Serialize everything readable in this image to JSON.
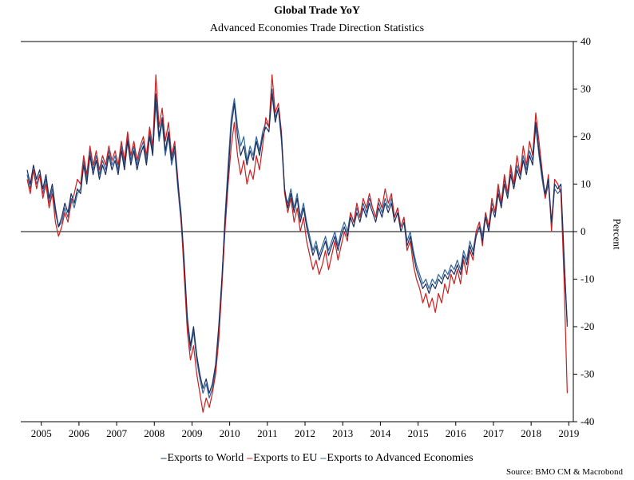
{
  "page": {
    "title": "Global Trade YoY",
    "subtitle": "Advanced Economies Trade Direction Statistics",
    "source": "Source: BMO CM & Macrobond",
    "ylabel": "Percent"
  },
  "chart_data": {
    "type": "line",
    "title": "Global Trade YoY",
    "subtitle": "Advanced Economies Trade Direction Statistics",
    "xlabel": "",
    "ylabel": "Percent",
    "ylim": [
      -40,
      40
    ],
    "yticks": [
      40,
      30,
      20,
      10,
      0,
      -10,
      -20,
      -30,
      -40
    ],
    "xlim": [
      2004.54,
      2019.12
    ],
    "xticks": [
      2005,
      2006,
      2007,
      2008,
      2009,
      2010,
      2011,
      2012,
      2013,
      2014,
      2015,
      2016,
      2017,
      2018,
      2019
    ],
    "x_start": 2004.625,
    "x_step": 0.0833333,
    "grid": false,
    "zero_line": true,
    "legend_position": "bottom",
    "source": "Source: BMO CM & Macrobond",
    "series": [
      {
        "name": "Exports to World",
        "color": "#1a2f5e",
        "values": [
          13,
          10,
          14,
          11,
          13,
          9,
          12,
          7,
          10,
          5,
          1,
          3,
          6,
          4,
          8,
          6,
          9,
          8,
          14,
          10,
          16,
          12,
          15,
          11,
          14,
          12,
          16,
          13,
          15,
          12,
          17,
          13,
          19,
          14,
          17,
          13,
          16,
          18,
          14,
          20,
          16,
          29,
          20,
          24,
          17,
          21,
          15,
          18,
          10,
          4,
          -6,
          -18,
          -24,
          -20,
          -26,
          -30,
          -33,
          -31,
          -34,
          -32,
          -28,
          -20,
          -10,
          2,
          12,
          22,
          27,
          20,
          16,
          18,
          14,
          17,
          15,
          19,
          16,
          20,
          22,
          21,
          29,
          23,
          26,
          20,
          9,
          5,
          8,
          4,
          7,
          2,
          5,
          1,
          -2,
          -5,
          -3,
          -6,
          -4,
          -2,
          -5,
          -3,
          -1,
          -4,
          -1,
          1,
          -1,
          3,
          1,
          4,
          2,
          5,
          3,
          6,
          4,
          2,
          5,
          3,
          6,
          4,
          6,
          2,
          4,
          0,
          2,
          -3,
          -1,
          -5,
          -8,
          -10,
          -12,
          -11,
          -13,
          -11,
          -12,
          -10,
          -11,
          -9,
          -10,
          -8,
          -9,
          -7,
          -9,
          -5,
          -7,
          -3,
          -5,
          -1,
          1,
          -2,
          3,
          0,
          5,
          3,
          8,
          5,
          10,
          7,
          12,
          9,
          13,
          11,
          15,
          12,
          16,
          14,
          23,
          17,
          12,
          8,
          11,
          2,
          10,
          9,
          10,
          -5,
          -20
        ]
      },
      {
        "name": "Exports to EU",
        "color": "#cc1f1f",
        "values": [
          11,
          8,
          13,
          9,
          12,
          7,
          10,
          5,
          8,
          2,
          -1,
          1,
          4,
          2,
          6,
          8,
          11,
          10,
          16,
          12,
          18,
          14,
          17,
          13,
          16,
          14,
          18,
          15,
          17,
          14,
          19,
          15,
          21,
          16,
          19,
          15,
          18,
          20,
          16,
          22,
          18,
          33,
          22,
          26,
          19,
          23,
          16,
          19,
          11,
          3,
          -9,
          -21,
          -27,
          -24,
          -30,
          -34,
          -38,
          -35,
          -37,
          -34,
          -30,
          -23,
          -12,
          0,
          10,
          18,
          23,
          16,
          12,
          15,
          10,
          13,
          11,
          16,
          13,
          18,
          24,
          22,
          33,
          25,
          27,
          21,
          8,
          4,
          7,
          2,
          5,
          0,
          3,
          -2,
          -5,
          -8,
          -6,
          -9,
          -7,
          -4,
          -8,
          -5,
          -2,
          -6,
          -3,
          0,
          -2,
          4,
          2,
          6,
          3,
          7,
          5,
          8,
          5,
          3,
          7,
          5,
          9,
          6,
          8,
          3,
          5,
          1,
          3,
          -4,
          -2,
          -7,
          -10,
          -12,
          -15,
          -13,
          -16,
          -14,
          -17,
          -13,
          -15,
          -11,
          -13,
          -9,
          -11,
          -8,
          -11,
          -6,
          -9,
          -4,
          -6,
          0,
          2,
          -3,
          4,
          1,
          7,
          4,
          10,
          6,
          12,
          8,
          14,
          10,
          16,
          12,
          18,
          14,
          19,
          16,
          25,
          19,
          13,
          7,
          12,
          0,
          11,
          10,
          8,
          -10,
          -34
        ]
      },
      {
        "name": "Exports to Advanced Economies",
        "color": "#31659c",
        "values": [
          12,
          9,
          13,
          10,
          12,
          8,
          11,
          6,
          9,
          4,
          1,
          2,
          5,
          3,
          7,
          5,
          8,
          9,
          15,
          11,
          17,
          13,
          16,
          12,
          15,
          13,
          17,
          14,
          16,
          13,
          18,
          14,
          20,
          15,
          18,
          14,
          17,
          19,
          15,
          21,
          17,
          27,
          19,
          23,
          16,
          20,
          14,
          17,
          9,
          2,
          -7,
          -19,
          -25,
          -21,
          -27,
          -31,
          -34,
          -32,
          -35,
          -33,
          -29,
          -21,
          -11,
          3,
          14,
          24,
          28,
          22,
          18,
          20,
          15,
          18,
          16,
          20,
          17,
          21,
          23,
          22,
          30,
          24,
          26,
          19,
          8,
          6,
          9,
          5,
          8,
          3,
          6,
          2,
          -1,
          -4,
          -2,
          -5,
          -3,
          -1,
          -4,
          -2,
          0,
          -3,
          0,
          2,
          0,
          4,
          2,
          5,
          3,
          6,
          4,
          7,
          5,
          3,
          6,
          4,
          7,
          5,
          7,
          3,
          5,
          1,
          3,
          -2,
          0,
          -4,
          -7,
          -9,
          -11,
          -10,
          -12,
          -10,
          -11,
          -9,
          -10,
          -8,
          -9,
          -7,
          -8,
          -6,
          -8,
          -4,
          -6,
          -2,
          -4,
          0,
          2,
          -1,
          4,
          1,
          6,
          4,
          9,
          6,
          11,
          8,
          13,
          10,
          14,
          12,
          16,
          13,
          17,
          15,
          22,
          16,
          11,
          7,
          10,
          1,
          9,
          8,
          9,
          -6,
          -19
        ]
      }
    ]
  }
}
